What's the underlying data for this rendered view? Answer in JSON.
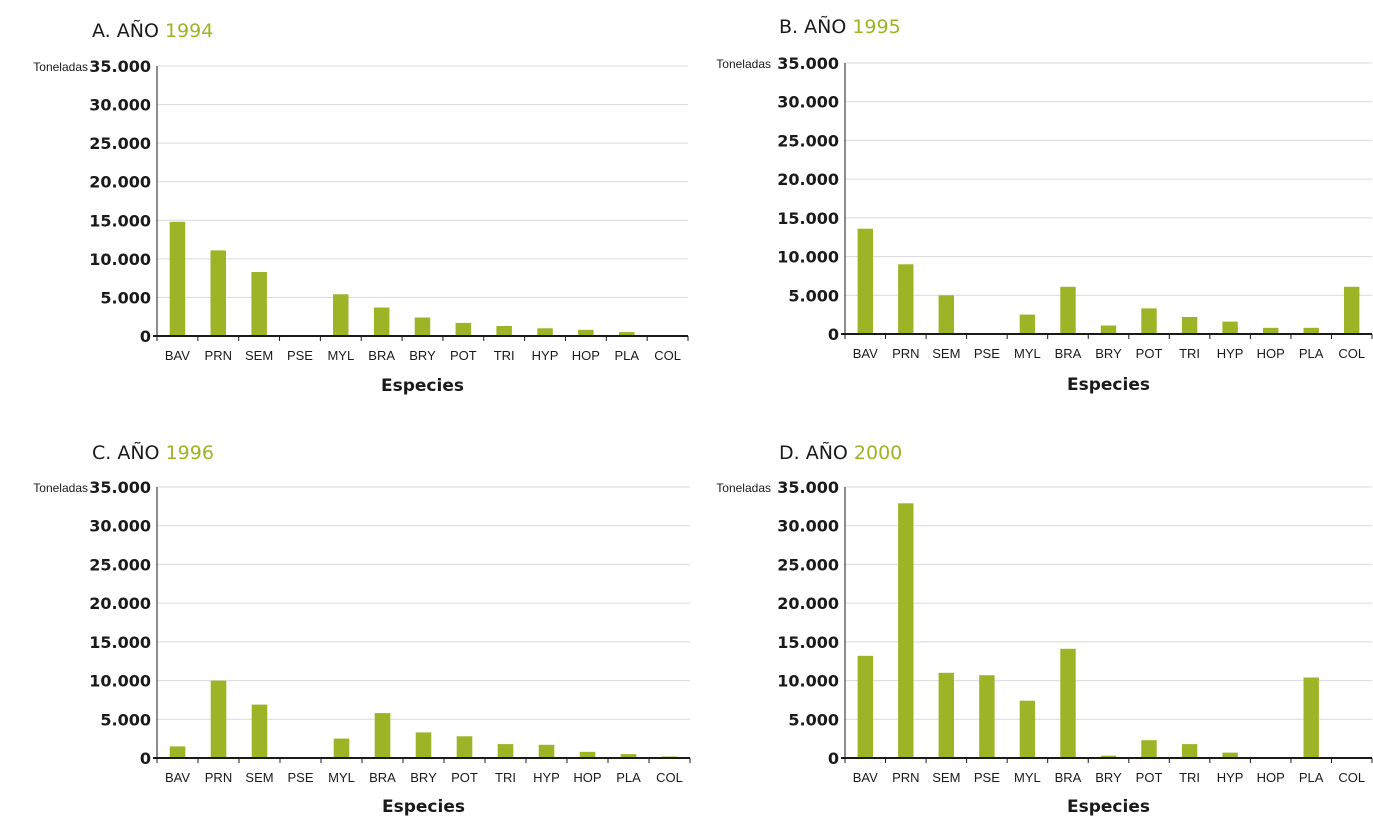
{
  "colors": {
    "bar": "#9db427",
    "accent_year": "#9db427",
    "text": "#1a1a1a",
    "grid": "#d9d9d9",
    "axis": "#1a1a1a"
  },
  "chart_data": [
    {
      "type": "bar",
      "title_prefix": "A. AÑO",
      "title_year": "1994",
      "unit_label": "Toneladas",
      "xlabel": "Especies",
      "categories": [
        "BAV",
        "PRN",
        "SEM",
        "PSE",
        "MYL",
        "BRA",
        "BRY",
        "POT",
        "TRI",
        "HYP",
        "HOP",
        "PLA",
        "COL"
      ],
      "values": [
        14800,
        11100,
        8300,
        0,
        5400,
        3700,
        2400,
        1700,
        1300,
        1000,
        800,
        500,
        0
      ],
      "ylim": [
        0,
        35000
      ],
      "yticks": [
        0,
        5000,
        10000,
        15000,
        20000,
        25000,
        30000,
        35000
      ],
      "ytick_labels": [
        "0",
        "5.000",
        "10.000",
        "15.000",
        "20.000",
        "25.000",
        "30.000",
        "35.000"
      ],
      "grid": true
    },
    {
      "type": "bar",
      "title_prefix": "B. AÑO",
      "title_year": "1995",
      "unit_label": "Toneladas",
      "xlabel": "Especies",
      "categories": [
        "BAV",
        "PRN",
        "SEM",
        "PSE",
        "MYL",
        "BRA",
        "BRY",
        "POT",
        "TRI",
        "HYP",
        "HOP",
        "PLA",
        "COL"
      ],
      "values": [
        13600,
        9000,
        5000,
        0,
        2500,
        6100,
        1100,
        3300,
        2200,
        1600,
        800,
        800,
        6100
      ],
      "ylim": [
        0,
        35000
      ],
      "yticks": [
        0,
        5000,
        10000,
        15000,
        20000,
        25000,
        30000,
        35000
      ],
      "ytick_labels": [
        "0",
        "5.000",
        "10.000",
        "15.000",
        "20.000",
        "25.000",
        "30.000",
        "35.000"
      ],
      "grid": true
    },
    {
      "type": "bar",
      "title_prefix": "C. AÑO",
      "title_year": "1996",
      "unit_label": "Toneladas",
      "xlabel": "Especies",
      "categories": [
        "BAV",
        "PRN",
        "SEM",
        "PSE",
        "MYL",
        "BRA",
        "BRY",
        "POT",
        "TRI",
        "HYP",
        "HOP",
        "PLA",
        "COL"
      ],
      "values": [
        1500,
        10000,
        6900,
        0,
        2500,
        5800,
        3300,
        2800,
        1800,
        1700,
        800,
        500,
        200
      ],
      "ylim": [
        0,
        35000
      ],
      "yticks": [
        0,
        5000,
        10000,
        15000,
        20000,
        25000,
        30000,
        35000
      ],
      "ytick_labels": [
        "0",
        "5.000",
        "10.000",
        "15.000",
        "20.000",
        "25.000",
        "30.000",
        "35.000"
      ],
      "grid": true
    },
    {
      "type": "bar",
      "title_prefix": "D. AÑO",
      "title_year": "2000",
      "unit_label": "Toneladas",
      "xlabel": "Especies",
      "categories": [
        "BAV",
        "PRN",
        "SEM",
        "PSE",
        "MYL",
        "BRA",
        "BRY",
        "POT",
        "TRI",
        "HYP",
        "HOP",
        "PLA",
        "COL"
      ],
      "values": [
        13200,
        32900,
        11000,
        10700,
        7400,
        14100,
        300,
        2300,
        1800,
        700,
        0,
        10400,
        0
      ],
      "ylim": [
        0,
        35000
      ],
      "yticks": [
        0,
        5000,
        10000,
        15000,
        20000,
        25000,
        30000,
        35000
      ],
      "ytick_labels": [
        "0",
        "5.000",
        "10.000",
        "15.000",
        "20.000",
        "25.000",
        "30.000",
        "35.000"
      ],
      "grid": true
    }
  ]
}
